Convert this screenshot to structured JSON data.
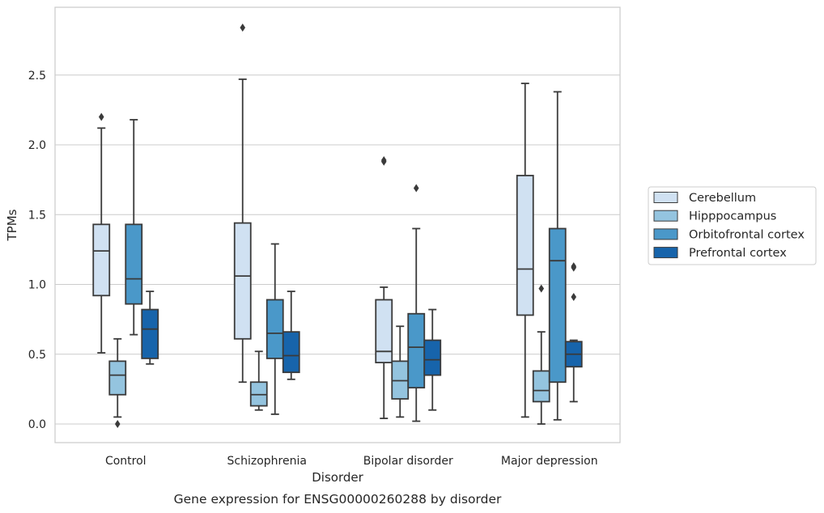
{
  "chart_data": {
    "type": "box",
    "caption": "Gene expression for ENSG00000260288 by disorder",
    "xlabel": "Disorder",
    "ylabel": "TPMs",
    "ylim": [
      -0.14,
      2.98
    ],
    "yticks": [
      "0.0",
      "0.5",
      "1.0",
      "1.5",
      "2.0",
      "2.5"
    ],
    "categories": [
      "Control",
      "Schizophrenia",
      "Bipolar disorder",
      "Major depression"
    ],
    "grid": "horizontal",
    "legend_position": "right",
    "series": [
      {
        "name": "Cerebellum",
        "color": "#d0e1f2",
        "boxes": [
          {
            "whisker_low": 0.51,
            "q1": 0.92,
            "median": 1.24,
            "q3": 1.43,
            "whisker_high": 2.12,
            "outliers": [
              2.2
            ]
          },
          {
            "whisker_low": 0.3,
            "q1": 0.61,
            "median": 1.06,
            "q3": 1.44,
            "whisker_high": 2.47,
            "outliers": [
              2.84
            ]
          },
          {
            "whisker_low": 0.04,
            "q1": 0.44,
            "median": 0.52,
            "q3": 0.89,
            "whisker_high": 0.98,
            "outliers": [
              1.88,
              1.89
            ]
          },
          {
            "whisker_low": 0.05,
            "q1": 0.78,
            "median": 1.11,
            "q3": 1.78,
            "whisker_high": 2.44,
            "outliers": []
          }
        ]
      },
      {
        "name": "Hipppocampus",
        "color": "#94c4df",
        "boxes": [
          {
            "whisker_low": 0.05,
            "q1": 0.21,
            "median": 0.35,
            "q3": 0.45,
            "whisker_high": 0.61,
            "outliers": [
              0.0
            ]
          },
          {
            "whisker_low": 0.1,
            "q1": 0.13,
            "median": 0.21,
            "q3": 0.3,
            "whisker_high": 0.52,
            "outliers": []
          },
          {
            "whisker_low": 0.05,
            "q1": 0.18,
            "median": 0.31,
            "q3": 0.45,
            "whisker_high": 0.7,
            "outliers": []
          },
          {
            "whisker_low": 0.0,
            "q1": 0.16,
            "median": 0.24,
            "q3": 0.38,
            "whisker_high": 0.66,
            "outliers": [
              0.97
            ]
          }
        ]
      },
      {
        "name": "Orbitofrontal cortex",
        "color": "#4a98c9",
        "boxes": [
          {
            "whisker_low": 0.64,
            "q1": 0.86,
            "median": 1.04,
            "q3": 1.43,
            "whisker_high": 2.18,
            "outliers": []
          },
          {
            "whisker_low": 0.07,
            "q1": 0.47,
            "median": 0.65,
            "q3": 0.89,
            "whisker_high": 1.29,
            "outliers": []
          },
          {
            "whisker_low": 0.02,
            "q1": 0.26,
            "median": 0.55,
            "q3": 0.79,
            "whisker_high": 1.4,
            "outliers": [
              1.69
            ]
          },
          {
            "whisker_low": 0.03,
            "q1": 0.3,
            "median": 1.17,
            "q3": 1.4,
            "whisker_high": 2.38,
            "outliers": []
          }
        ]
      },
      {
        "name": "Prefrontal cortex",
        "color": "#1764ab",
        "boxes": [
          {
            "whisker_low": 0.43,
            "q1": 0.47,
            "median": 0.68,
            "q3": 0.82,
            "whisker_high": 0.95,
            "outliers": []
          },
          {
            "whisker_low": 0.32,
            "q1": 0.37,
            "median": 0.49,
            "q3": 0.66,
            "whisker_high": 0.95,
            "outliers": []
          },
          {
            "whisker_low": 0.1,
            "q1": 0.35,
            "median": 0.46,
            "q3": 0.6,
            "whisker_high": 0.82,
            "outliers": []
          },
          {
            "whisker_low": 0.16,
            "q1": 0.41,
            "median": 0.5,
            "q3": 0.59,
            "whisker_high": 0.6,
            "outliers": [
              0.91,
              1.12,
              1.13
            ]
          }
        ]
      }
    ]
  }
}
